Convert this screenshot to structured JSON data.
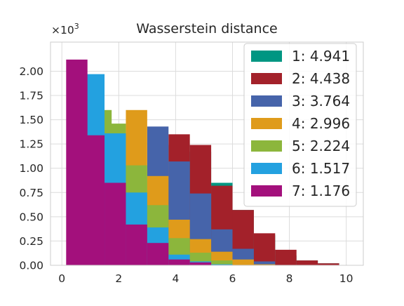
{
  "chart_data": {
    "type": "bar",
    "title": "Wasserstein distance",
    "xlabel": "",
    "ylabel": "",
    "y_scale_label_base": "×10",
    "y_scale_label_exp": "3",
    "xlim": [
      -0.4,
      10.6
    ],
    "ylim": [
      0,
      2.3
    ],
    "xticks": [
      0,
      2,
      4,
      6,
      8,
      10
    ],
    "yticks": [
      0.0,
      0.25,
      0.5,
      0.75,
      1.0,
      1.25,
      1.5,
      1.75,
      2.0
    ],
    "ytick_labels": [
      "0.00",
      "0.25",
      "0.50",
      "0.75",
      "1.00",
      "1.25",
      "1.50",
      "1.75",
      "2.00"
    ],
    "grid": true,
    "legend_position": "top-right",
    "series": [
      {
        "name": "1: 4.941",
        "color": "#009682",
        "bin_width": 0.75,
        "bins": [
          [
            1.5,
            0.0
          ],
          [
            2.25,
            0.0
          ],
          [
            3.0,
            0.003
          ],
          [
            3.75,
            1.24
          ],
          [
            4.5,
            1.17
          ],
          [
            5.25,
            0.85
          ],
          [
            6.0,
            0.57
          ],
          [
            6.75,
            0.31
          ],
          [
            7.5,
            0.1
          ],
          [
            8.25,
            0.05
          ],
          [
            9.0,
            0.02
          ],
          [
            9.75,
            0.0
          ]
        ]
      },
      {
        "name": "2: 4.438",
        "color": "#A3212A",
        "bin_width": 0.75,
        "bins": [
          [
            1.5,
            0.0
          ],
          [
            2.25,
            0.0
          ],
          [
            3.0,
            0.003
          ],
          [
            3.75,
            1.35
          ],
          [
            4.5,
            1.24
          ],
          [
            5.25,
            0.82
          ],
          [
            6.0,
            0.57
          ],
          [
            6.75,
            0.33
          ],
          [
            7.5,
            0.16
          ],
          [
            8.25,
            0.05
          ],
          [
            9.0,
            0.02
          ]
        ]
      },
      {
        "name": "3: 3.764",
        "color": "#4664AA",
        "bin_width": 0.75,
        "bins": [
          [
            3.0,
            1.43
          ],
          [
            3.75,
            1.07
          ],
          [
            4.5,
            0.74
          ],
          [
            5.25,
            0.37
          ],
          [
            6.0,
            0.17
          ],
          [
            6.75,
            0.04
          ],
          [
            7.5,
            0.0
          ],
          [
            8.25,
            0.0
          ]
        ]
      },
      {
        "name": "4: 2.996",
        "color": "#DF9B1B",
        "bin_width": 0.75,
        "bins": [
          [
            2.25,
            1.6
          ],
          [
            3.0,
            0.92
          ],
          [
            3.75,
            0.47
          ],
          [
            4.5,
            0.27
          ],
          [
            5.25,
            0.14
          ],
          [
            6.0,
            0.06
          ],
          [
            6.75,
            0.01
          ],
          [
            7.5,
            0.0
          ]
        ]
      },
      {
        "name": "5: 2.224",
        "color": "#8CB63C",
        "bin_width": 0.75,
        "bins": [
          [
            1.0,
            1.6
          ],
          [
            1.5,
            1.46
          ],
          [
            2.25,
            1.03
          ],
          [
            3.0,
            0.62
          ],
          [
            3.75,
            0.28
          ],
          [
            4.5,
            0.13
          ],
          [
            5.25,
            0.05
          ],
          [
            6.0,
            0.0
          ]
        ]
      },
      {
        "name": "6: 1.517",
        "color": "#23A1E0",
        "bin_width": 0.75,
        "bins": [
          [
            0.75,
            1.97
          ],
          [
            1.5,
            1.36
          ],
          [
            2.25,
            0.75
          ],
          [
            3.0,
            0.39
          ],
          [
            3.75,
            0.11
          ],
          [
            4.5,
            0.04
          ],
          [
            5.25,
            0.01
          ],
          [
            6.0,
            0.0
          ]
        ]
      },
      {
        "name": "7: 1.176",
        "color": "#A3107C",
        "bin_width": 0.75,
        "bins": [
          [
            0.15,
            2.12
          ],
          [
            0.75,
            1.34
          ],
          [
            1.5,
            0.85
          ],
          [
            2.25,
            0.42
          ],
          [
            3.0,
            0.23
          ],
          [
            3.75,
            0.06
          ],
          [
            4.5,
            0.03
          ],
          [
            5.25,
            0.0
          ]
        ]
      }
    ]
  }
}
